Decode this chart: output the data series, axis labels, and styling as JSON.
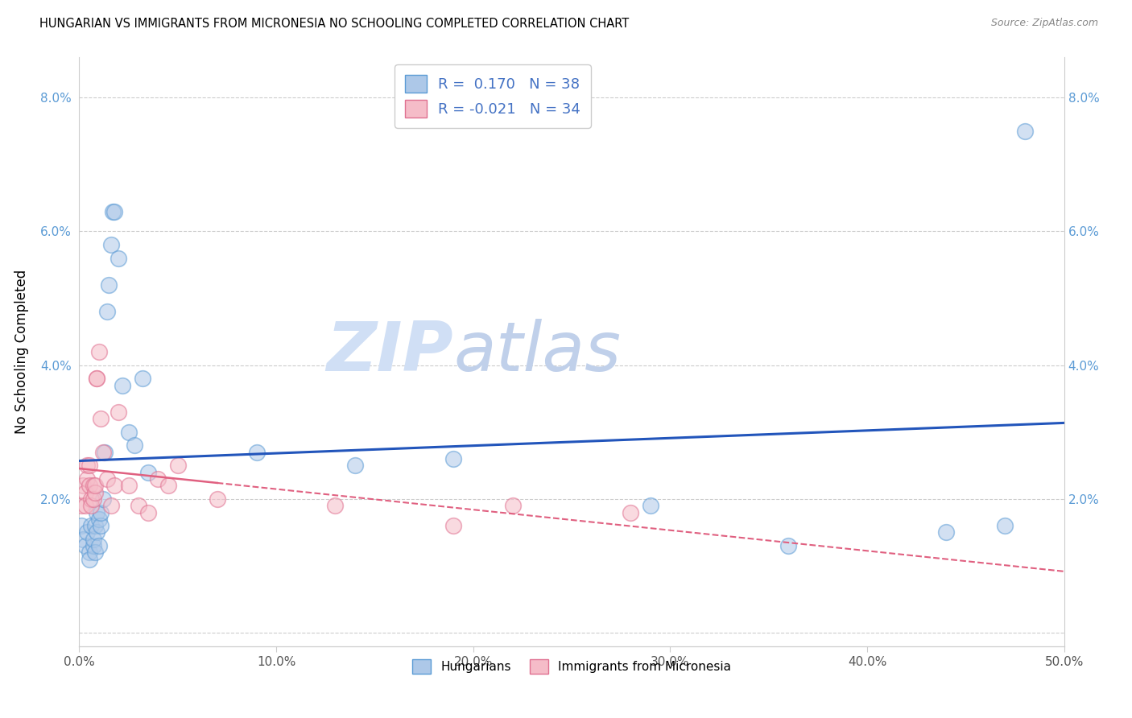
{
  "title": "HUNGARIAN VS IMMIGRANTS FROM MICRONESIA NO SCHOOLING COMPLETED CORRELATION CHART",
  "source": "Source: ZipAtlas.com",
  "ylabel": "No Schooling Completed",
  "xlim": [
    0.0,
    0.5
  ],
  "ylim": [
    -0.002,
    0.086
  ],
  "xticks": [
    0.0,
    0.1,
    0.2,
    0.3,
    0.4,
    0.5
  ],
  "xtick_labels": [
    "0.0%",
    "10.0%",
    "20.0%",
    "30.0%",
    "40.0%",
    "50.0%"
  ],
  "yticks": [
    0.0,
    0.02,
    0.04,
    0.06,
    0.08
  ],
  "ytick_labels": [
    "",
    "2.0%",
    "4.0%",
    "6.0%",
    "8.0%"
  ],
  "hungarian_color": "#adc8e8",
  "hungarian_edge_color": "#5b9bd5",
  "micronesia_color": "#f5bcc8",
  "micronesia_edge_color": "#e07090",
  "trend_blue": "#2255bb",
  "trend_pink": "#e06080",
  "R_hungarian": 0.17,
  "N_hungarian": 38,
  "R_micronesia": -0.021,
  "N_micronesia": 34,
  "watermark_zip": "ZIP",
  "watermark_atlas": "atlas",
  "watermark_color_zip": "#d0dff5",
  "watermark_color_atlas": "#c0d0ea",
  "legend_label_hungarian": "Hungarians",
  "legend_label_micronesia": "Immigrants from Micronesia",
  "hungarian_x": [
    0.001,
    0.002,
    0.003,
    0.004,
    0.005,
    0.005,
    0.006,
    0.007,
    0.007,
    0.008,
    0.008,
    0.009,
    0.009,
    0.01,
    0.01,
    0.011,
    0.011,
    0.012,
    0.013,
    0.014,
    0.015,
    0.016,
    0.017,
    0.018,
    0.02,
    0.022,
    0.025,
    0.028,
    0.032,
    0.035,
    0.09,
    0.14,
    0.19,
    0.29,
    0.36,
    0.44,
    0.47,
    0.48
  ],
  "hungarian_y": [
    0.016,
    0.014,
    0.013,
    0.015,
    0.012,
    0.011,
    0.016,
    0.013,
    0.014,
    0.012,
    0.016,
    0.015,
    0.018,
    0.013,
    0.017,
    0.016,
    0.018,
    0.02,
    0.027,
    0.048,
    0.052,
    0.058,
    0.063,
    0.063,
    0.056,
    0.037,
    0.03,
    0.028,
    0.038,
    0.024,
    0.027,
    0.025,
    0.026,
    0.019,
    0.013,
    0.015,
    0.016,
    0.075
  ],
  "micronesia_x": [
    0.001,
    0.002,
    0.003,
    0.003,
    0.004,
    0.004,
    0.005,
    0.005,
    0.006,
    0.006,
    0.007,
    0.007,
    0.008,
    0.008,
    0.009,
    0.009,
    0.01,
    0.011,
    0.012,
    0.014,
    0.016,
    0.018,
    0.02,
    0.025,
    0.03,
    0.035,
    0.04,
    0.045,
    0.05,
    0.07,
    0.13,
    0.19,
    0.22,
    0.28
  ],
  "micronesia_y": [
    0.019,
    0.022,
    0.021,
    0.019,
    0.025,
    0.023,
    0.025,
    0.022,
    0.02,
    0.019,
    0.022,
    0.02,
    0.021,
    0.022,
    0.038,
    0.038,
    0.042,
    0.032,
    0.027,
    0.023,
    0.019,
    0.022,
    0.033,
    0.022,
    0.019,
    0.018,
    0.023,
    0.022,
    0.025,
    0.02,
    0.019,
    0.016,
    0.019,
    0.018
  ],
  "marker_size": 200,
  "alpha": 0.55,
  "grid_color": "#cccccc",
  "spine_color": "#cccccc"
}
